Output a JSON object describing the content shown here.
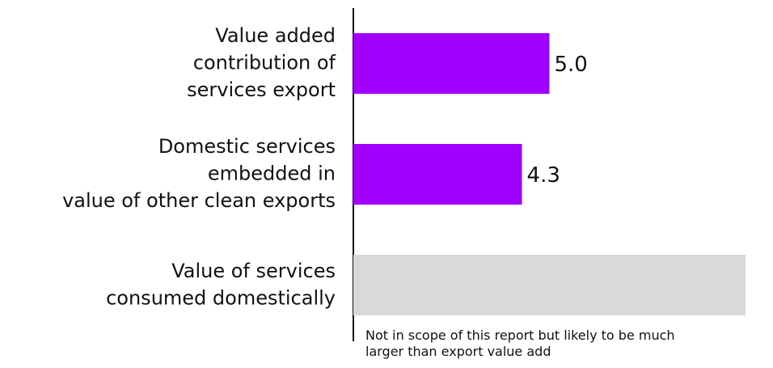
{
  "chart_data": {
    "type": "hbar",
    "categories": [
      [
        "Value added",
        "contribution of",
        "services export"
      ],
      [
        "Domestic services",
        "embedded in",
        "value of other clean exports"
      ],
      [
        "Value of services",
        "consumed domestically"
      ]
    ],
    "values": [
      5.0,
      4.3,
      10
    ],
    "value_labels": [
      "5.0",
      "4.3",
      null
    ],
    "colors": [
      "#a100ff",
      "#a100ff",
      "#d9d9d9"
    ],
    "xlim": [
      0,
      10
    ],
    "annotation": [
      "Not in scope of this report but likely to be much",
      "larger than export value add"
    ]
  }
}
